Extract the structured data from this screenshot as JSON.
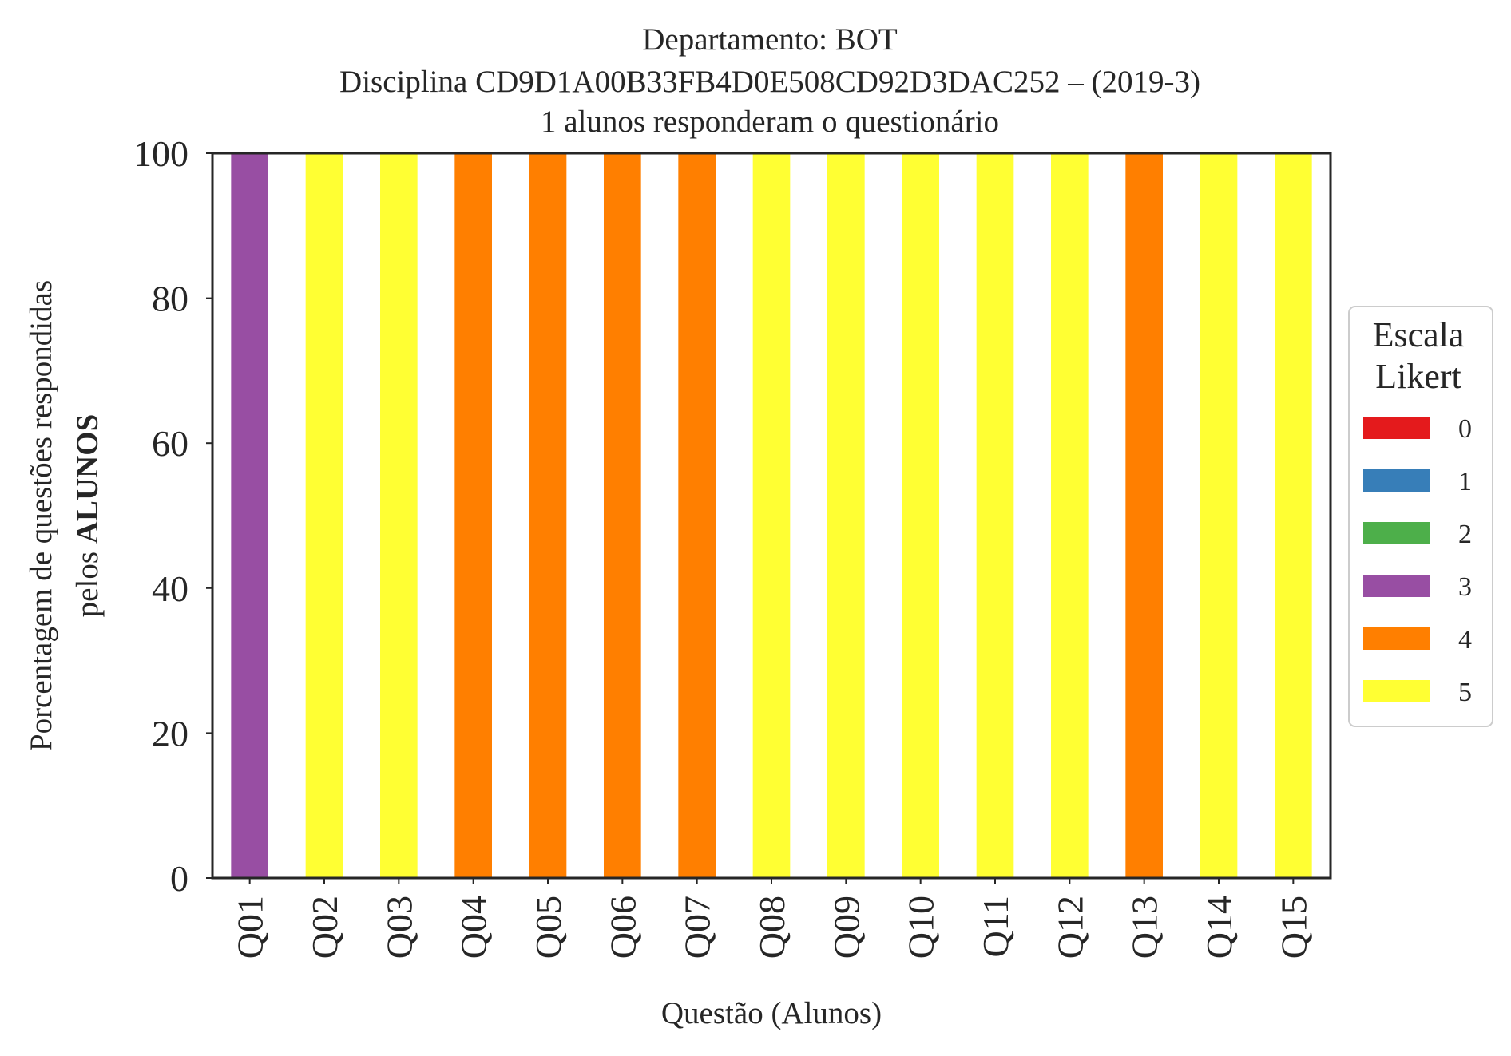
{
  "chart_data": {
    "type": "bar",
    "stacked": true,
    "title_lines": [
      "Departamento: BOT",
      "Disciplina CD9D1A00B33FB4D0E508CD92D3DAC252 – (2019-3)",
      "1 alunos responderam o questionário"
    ],
    "xlabel": "Questão (Alunos)",
    "ylabel_line1": "Porcentagem de questões respondidas",
    "ylabel_line2_prefix": "pelos ",
    "ylabel_line2_bold": "ALUNOS",
    "ylim": [
      0,
      100
    ],
    "yticks": [
      "0",
      "20",
      "40",
      "60",
      "80",
      "100"
    ],
    "grid": false,
    "categories": [
      "Q01",
      "Q02",
      "Q03",
      "Q04",
      "Q05",
      "Q06",
      "Q07",
      "Q08",
      "Q09",
      "Q10",
      "Q11",
      "Q12",
      "Q13",
      "Q14",
      "Q15"
    ],
    "legend": {
      "title_lines": [
        "Escala",
        "Likert"
      ],
      "placement": "right-center, outside plot"
    },
    "series": [
      {
        "name": "0",
        "color": "#e41a1c",
        "values": [
          0,
          0,
          0,
          0,
          0,
          0,
          0,
          0,
          0,
          0,
          0,
          0,
          0,
          0,
          0
        ]
      },
      {
        "name": "1",
        "color": "#377eb8",
        "values": [
          0,
          0,
          0,
          0,
          0,
          0,
          0,
          0,
          0,
          0,
          0,
          0,
          0,
          0,
          0
        ]
      },
      {
        "name": "2",
        "color": "#4daf4a",
        "values": [
          0,
          0,
          0,
          0,
          0,
          0,
          0,
          0,
          0,
          0,
          0,
          0,
          0,
          0,
          0
        ]
      },
      {
        "name": "3",
        "color": "#984ea3",
        "values": [
          100,
          0,
          0,
          0,
          0,
          0,
          0,
          0,
          0,
          0,
          0,
          0,
          0,
          0,
          0
        ]
      },
      {
        "name": "4",
        "color": "#ff7f00",
        "values": [
          0,
          0,
          0,
          100,
          100,
          100,
          100,
          0,
          0,
          0,
          0,
          0,
          100,
          0,
          0
        ]
      },
      {
        "name": "5",
        "color": "#ffff33",
        "values": [
          0,
          100,
          100,
          0,
          0,
          0,
          0,
          100,
          100,
          100,
          100,
          100,
          0,
          100,
          100
        ]
      }
    ]
  }
}
